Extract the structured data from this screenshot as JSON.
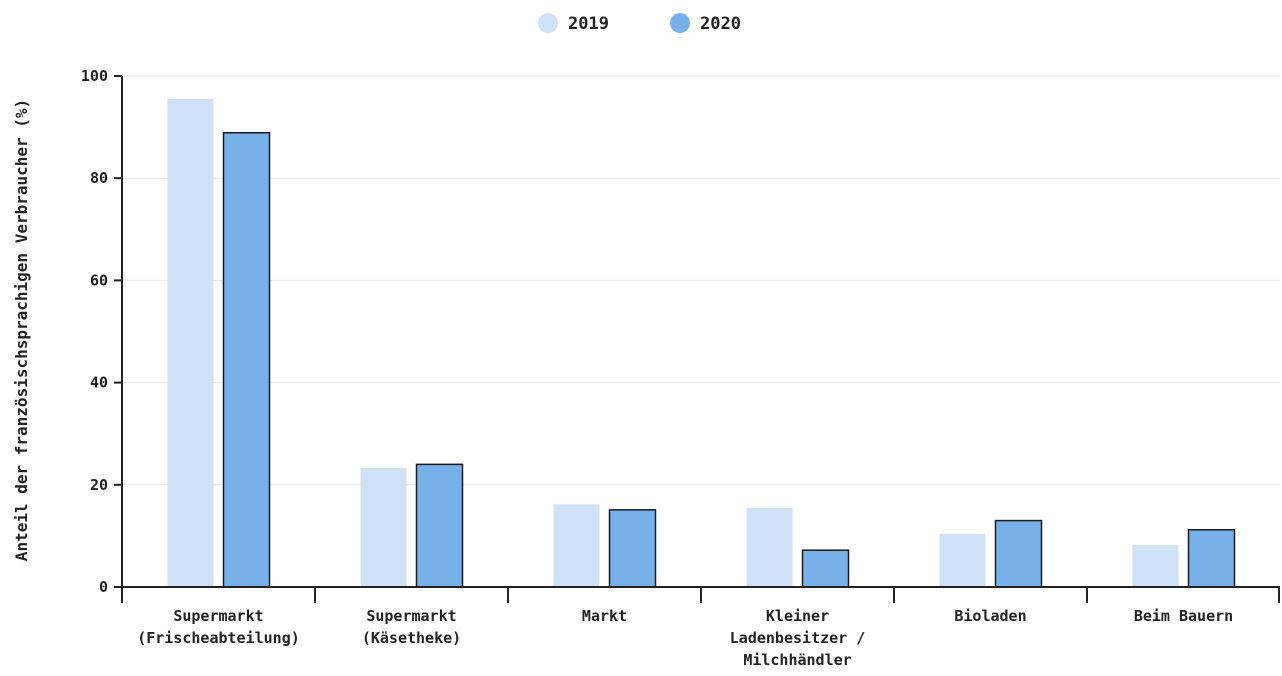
{
  "chart_data": {
    "type": "bar",
    "categories": [
      [
        "Supermarkt",
        "(Frischeabteilung)"
      ],
      [
        "Supermarkt",
        "(Käsetheke)"
      ],
      [
        "Markt"
      ],
      [
        "Kleiner",
        "Ladenbesitzer /",
        "Milchhändler"
      ],
      [
        "Bioladen"
      ],
      [
        "Beim Bauern"
      ]
    ],
    "series": [
      {
        "name": "2019",
        "values": [
          95.5,
          23.3,
          16.2,
          15.5,
          10.4,
          8.2
        ],
        "color": "#cfe1f7",
        "stroke": "none"
      },
      {
        "name": "2020",
        "values": [
          88.9,
          24.0,
          15.1,
          7.2,
          13.0,
          11.2
        ],
        "color": "#78b1ea",
        "stroke": "#1a1a1a"
      }
    ],
    "ylabel": "Anteil der französischsprachigen Verbraucher (%)",
    "ylim": [
      0,
      100
    ],
    "yticks": [
      0,
      20,
      40,
      60,
      80,
      100
    ],
    "grid": true,
    "legend": "top-center"
  }
}
